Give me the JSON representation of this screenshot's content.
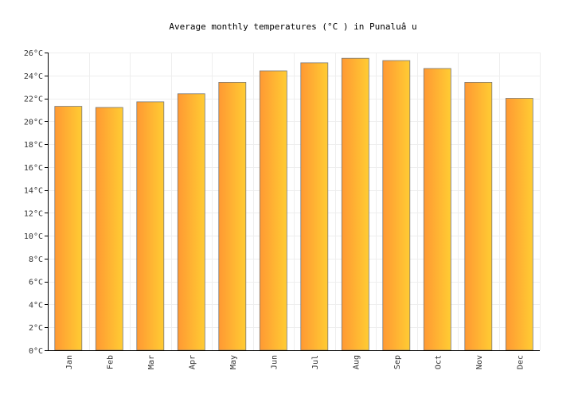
{
  "chart_data": {
    "type": "bar",
    "title": "Average monthly temperatures (°C ) in Punaluâ u",
    "xlabel": "",
    "ylabel": "",
    "categories": [
      "Jan",
      "Feb",
      "Mar",
      "Apr",
      "May",
      "Jun",
      "Jul",
      "Aug",
      "Sep",
      "Oct",
      "Nov",
      "Dec"
    ],
    "series": [
      {
        "values": [
          21.3,
          21.2,
          21.7,
          22.4,
          23.4,
          24.4,
          25.1,
          25.5,
          25.3,
          24.6,
          23.4,
          22.0
        ]
      }
    ],
    "ylim": [
      0,
      26
    ],
    "yticks": [
      "0°C",
      "2°C",
      "4°C",
      "6°C",
      "8°C",
      "10°C",
      "12°C",
      "14°C",
      "16°C",
      "18°C",
      "20°C",
      "22°C",
      "24°C",
      "26°C"
    ],
    "grid": true,
    "colors": {
      "bar_left": "#ff9933",
      "bar_right": "#ffcc33",
      "bar_stroke": "#777777",
      "grid": "#eeeeee",
      "axis": "#000000"
    }
  }
}
